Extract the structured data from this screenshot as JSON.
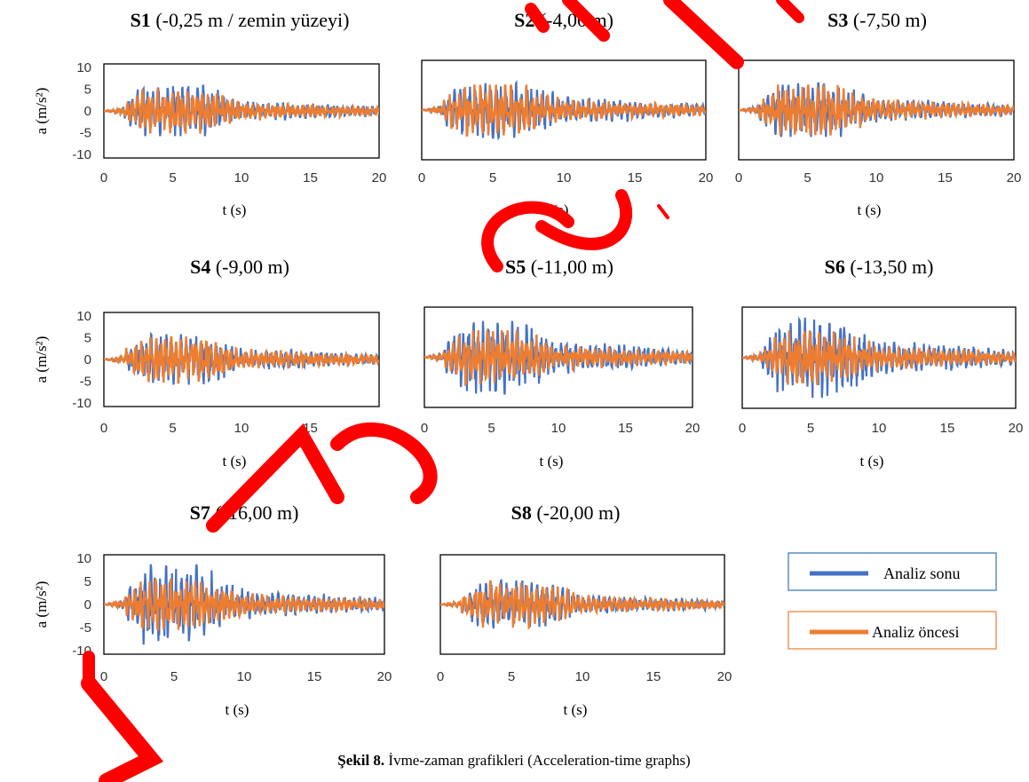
{
  "caption": {
    "label": "Şekil 8.",
    "text": " İvme-zaman grafikleri (Acceleration-time graphs)"
  },
  "legend": {
    "items": [
      {
        "name": "Analiz sonu",
        "color": "#4472C4"
      },
      {
        "name": "Analiz öncesi",
        "color": "#ED7D31"
      }
    ]
  },
  "watermark": {
    "color": "#FF0000",
    "text": "LAKE GÜ"
  },
  "chart_data": [
    {
      "type": "line",
      "id": "S1",
      "title_bold": "S1",
      "title_rest": " (-0,25 m / zemin yüzeyi)",
      "xlabel": "t (s)",
      "ylabel": "a (m/s²)",
      "xlim": [
        0,
        20
      ],
      "ylim": [
        -10,
        10
      ],
      "xticks": [
        "0",
        "5",
        "10",
        "15",
        "20"
      ],
      "yticks": [
        "10",
        "5",
        "0",
        "-5",
        "-10"
      ],
      "grid": false,
      "series": [
        {
          "name": "Analiz sonu",
          "peak_abs_a": 5.8,
          "envelope": [
            {
              "t": 1.5,
              "a": 2.0
            },
            {
              "t": 3,
              "a": 5.0
            },
            {
              "t": 6,
              "a": 5.5
            },
            {
              "t": 8,
              "a": 4.5
            },
            {
              "t": 10,
              "a": 2.0
            },
            {
              "t": 20,
              "a": 1.0
            }
          ]
        },
        {
          "name": "Analiz öncesi",
          "peak_abs_a": 5.2,
          "envelope": [
            {
              "t": 1.5,
              "a": 2.0
            },
            {
              "t": 3,
              "a": 4.8
            },
            {
              "t": 6,
              "a": 5.0
            },
            {
              "t": 8,
              "a": 4.0
            },
            {
              "t": 10,
              "a": 1.8
            },
            {
              "t": 20,
              "a": 0.8
            }
          ]
        }
      ]
    },
    {
      "type": "line",
      "id": "S2",
      "title_bold": "S2",
      "title_rest": " (-4,00 m)",
      "xlabel": "t (s)",
      "ylabel": "",
      "xlim": [
        0,
        20
      ],
      "ylim": [
        -10,
        10
      ],
      "xticks": [
        "0",
        "5",
        "10",
        "15",
        "20"
      ],
      "yticks": [],
      "grid": false,
      "series": [
        {
          "name": "Analiz sonu",
          "peak_abs_a": 6.0,
          "envelope": [
            {
              "t": 1.5,
              "a": 2.2
            },
            {
              "t": 3,
              "a": 5.5
            },
            {
              "t": 6,
              "a": 5.8
            },
            {
              "t": 8,
              "a": 4.5
            },
            {
              "t": 10,
              "a": 2.5
            },
            {
              "t": 20,
              "a": 1.2
            }
          ]
        },
        {
          "name": "Analiz öncesi",
          "peak_abs_a": 5.5,
          "envelope": [
            {
              "t": 1.5,
              "a": 2.0
            },
            {
              "t": 3,
              "a": 5.0
            },
            {
              "t": 6,
              "a": 5.2
            },
            {
              "t": 8,
              "a": 4.0
            },
            {
              "t": 10,
              "a": 2.0
            },
            {
              "t": 20,
              "a": 1.0
            }
          ]
        }
      ]
    },
    {
      "type": "line",
      "id": "S3",
      "title_bold": "S3",
      "title_rest": " (-7,50 m)",
      "xlabel": "t (s)",
      "ylabel": "",
      "xlim": [
        0,
        20
      ],
      "ylim": [
        -10,
        10
      ],
      "xticks": [
        "0",
        "5",
        "10",
        "15",
        "20"
      ],
      "yticks": [],
      "grid": false,
      "series": [
        {
          "name": "Analiz sonu",
          "peak_abs_a": 5.8,
          "envelope": [
            {
              "t": 1.5,
              "a": 2.0
            },
            {
              "t": 3,
              "a": 5.2
            },
            {
              "t": 6,
              "a": 5.6
            },
            {
              "t": 8,
              "a": 4.2
            },
            {
              "t": 10,
              "a": 2.2
            },
            {
              "t": 20,
              "a": 1.0
            }
          ]
        },
        {
          "name": "Analiz öncesi",
          "peak_abs_a": 5.5,
          "envelope": [
            {
              "t": 1.5,
              "a": 2.0
            },
            {
              "t": 3,
              "a": 5.0
            },
            {
              "t": 6,
              "a": 5.4
            },
            {
              "t": 8,
              "a": 4.0
            },
            {
              "t": 10,
              "a": 2.0
            },
            {
              "t": 20,
              "a": 0.9
            }
          ]
        }
      ]
    },
    {
      "type": "line",
      "id": "S4",
      "title_bold": "S4",
      "title_rest": " (-9,00 m)",
      "xlabel": "t (s)",
      "ylabel": "a (m/s²)",
      "xlim": [
        0,
        20
      ],
      "ylim": [
        -10,
        10
      ],
      "xticks": [
        "0",
        "5",
        "10",
        "15",
        "20"
      ],
      "yticks": [
        "10",
        "5",
        "0",
        "-5",
        "-10"
      ],
      "grid": false,
      "series": [
        {
          "name": "Analiz sonu",
          "peak_abs_a": 5.8,
          "envelope": [
            {
              "t": 1.5,
              "a": 2.0
            },
            {
              "t": 3,
              "a": 5.4
            },
            {
              "t": 6,
              "a": 5.6
            },
            {
              "t": 8,
              "a": 4.5
            },
            {
              "t": 10,
              "a": 2.2
            },
            {
              "t": 20,
              "a": 1.0
            }
          ]
        },
        {
          "name": "Analiz öncesi",
          "peak_abs_a": 5.3,
          "envelope": [
            {
              "t": 1.5,
              "a": 2.0
            },
            {
              "t": 3,
              "a": 5.0
            },
            {
              "t": 6,
              "a": 5.2
            },
            {
              "t": 8,
              "a": 4.2
            },
            {
              "t": 10,
              "a": 2.0
            },
            {
              "t": 20,
              "a": 0.8
            }
          ]
        }
      ]
    },
    {
      "type": "line",
      "id": "S5",
      "title_bold": "S5",
      "title_rest": " (-11,00 m)",
      "xlabel": "t (s)",
      "ylabel": "",
      "xlim": [
        0,
        20
      ],
      "ylim": [
        -10,
        10
      ],
      "xticks": [
        "0",
        "5",
        "10",
        "15",
        "20"
      ],
      "yticks": [],
      "grid": false,
      "series": [
        {
          "name": "Analiz sonu",
          "peak_abs_a": 7.8,
          "envelope": [
            {
              "t": 1.5,
              "a": 2.5
            },
            {
              "t": 3,
              "a": 7.0
            },
            {
              "t": 6,
              "a": 7.5
            },
            {
              "t": 8,
              "a": 5.5
            },
            {
              "t": 10,
              "a": 3.0
            },
            {
              "t": 20,
              "a": 1.5
            }
          ]
        },
        {
          "name": "Analiz öncesi",
          "peak_abs_a": 5.8,
          "envelope": [
            {
              "t": 1.5,
              "a": 2.0
            },
            {
              "t": 3,
              "a": 5.2
            },
            {
              "t": 6,
              "a": 5.5
            },
            {
              "t": 8,
              "a": 4.2
            },
            {
              "t": 10,
              "a": 2.2
            },
            {
              "t": 20,
              "a": 1.0
            }
          ]
        }
      ]
    },
    {
      "type": "line",
      "id": "S6",
      "title_bold": "S6",
      "title_rest": " (-13,50 m)",
      "xlabel": "t (s)",
      "ylabel": "",
      "xlim": [
        0,
        20
      ],
      "ylim": [
        -10,
        10
      ],
      "xticks": [
        "0",
        "5",
        "10",
        "15",
        "20"
      ],
      "yticks": [],
      "grid": false,
      "series": [
        {
          "name": "Analiz sonu",
          "peak_abs_a": 8.5,
          "envelope": [
            {
              "t": 1.5,
              "a": 2.5
            },
            {
              "t": 3,
              "a": 7.5
            },
            {
              "t": 6,
              "a": 8.2
            },
            {
              "t": 8,
              "a": 6.0
            },
            {
              "t": 10,
              "a": 3.0
            },
            {
              "t": 20,
              "a": 1.5
            }
          ]
        },
        {
          "name": "Analiz öncesi",
          "peak_abs_a": 5.8,
          "envelope": [
            {
              "t": 1.5,
              "a": 2.0
            },
            {
              "t": 3,
              "a": 5.2
            },
            {
              "t": 6,
              "a": 5.5
            },
            {
              "t": 8,
              "a": 4.2
            },
            {
              "t": 10,
              "a": 2.2
            },
            {
              "t": 20,
              "a": 1.0
            }
          ]
        }
      ]
    },
    {
      "type": "line",
      "id": "S7",
      "title_bold": "S7",
      "title_rest": " (-16,00 m)",
      "xlabel": "t (s)",
      "ylabel": "a (m/s²)",
      "xlim": [
        0,
        20
      ],
      "ylim": [
        -10,
        10
      ],
      "xticks": [
        "0",
        "5",
        "10",
        "15",
        "20"
      ],
      "yticks": [
        "10",
        "5",
        "0",
        "-5",
        "-10"
      ],
      "grid": false,
      "series": [
        {
          "name": "Analiz sonu",
          "peak_abs_a": 8.7,
          "envelope": [
            {
              "t": 1.5,
              "a": 2.5
            },
            {
              "t": 3,
              "a": 8.5
            },
            {
              "t": 6,
              "a": 7.5
            },
            {
              "t": 8,
              "a": 5.5
            },
            {
              "t": 10,
              "a": 2.5
            },
            {
              "t": 20,
              "a": 1.2
            }
          ]
        },
        {
          "name": "Analiz öncesi",
          "peak_abs_a": 5.5,
          "envelope": [
            {
              "t": 1.5,
              "a": 2.0
            },
            {
              "t": 3,
              "a": 5.0
            },
            {
              "t": 6,
              "a": 5.2
            },
            {
              "t": 8,
              "a": 4.0
            },
            {
              "t": 10,
              "a": 2.0
            },
            {
              "t": 20,
              "a": 0.9
            }
          ]
        }
      ]
    },
    {
      "type": "line",
      "id": "S8",
      "title_bold": "S8",
      "title_rest": " (-20,00 m)",
      "xlabel": "t (s)",
      "ylabel": "",
      "xlim": [
        0,
        20
      ],
      "ylim": [
        -10,
        10
      ],
      "xticks": [
        "0",
        "5",
        "10",
        "15",
        "20"
      ],
      "yticks": [],
      "grid": false,
      "series": [
        {
          "name": "Analiz sonu",
          "peak_abs_a": 5.2,
          "envelope": [
            {
              "t": 1.5,
              "a": 1.8
            },
            {
              "t": 3,
              "a": 4.8
            },
            {
              "t": 6,
              "a": 5.0
            },
            {
              "t": 8,
              "a": 3.8
            },
            {
              "t": 10,
              "a": 1.8
            },
            {
              "t": 20,
              "a": 0.8
            }
          ]
        },
        {
          "name": "Analiz öncesi",
          "peak_abs_a": 5.0,
          "envelope": [
            {
              "t": 1.5,
              "a": 1.8
            },
            {
              "t": 3,
              "a": 4.6
            },
            {
              "t": 6,
              "a": 4.8
            },
            {
              "t": 8,
              "a": 3.6
            },
            {
              "t": 10,
              "a": 1.7
            },
            {
              "t": 20,
              "a": 0.7
            }
          ]
        }
      ]
    }
  ]
}
